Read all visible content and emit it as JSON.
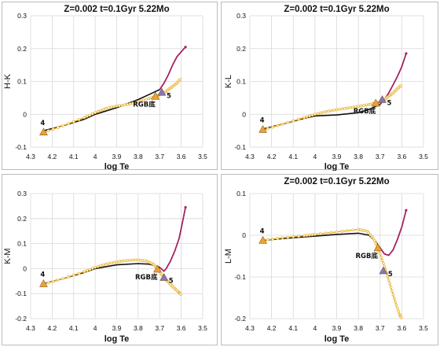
{
  "colors": {
    "black_line": "#111111",
    "magenta_line": "#b0206a",
    "gold_line": "#e3ad2a",
    "gold_marker": "#f0c050",
    "tri_orange": "#f0a030",
    "tri_purple": "#8a74b8",
    "grid": "#d8d8d8"
  },
  "chart_data": [
    {
      "type": "line",
      "title": "Z=0.002  t=0.1Gyr 5.22Mo",
      "xlabel": "log Te",
      "ylabel": "H-K",
      "xlim": [
        4.3,
        3.5
      ],
      "ylim": [
        -0.1,
        0.3
      ],
      "xticks": [
        "4.3",
        "4.2",
        "4.1",
        "4",
        "3.9",
        "3.8",
        "3.7",
        "3.6",
        "3.5"
      ],
      "yticks": [
        "-0.1",
        "0",
        "0.1",
        "0.2",
        "0.3"
      ],
      "grid": true,
      "series": [
        {
          "color": "black",
          "x": [
            4.24,
            4.15,
            4.05,
            4.0,
            3.9,
            3.8,
            3.75,
            3.7,
            3.68,
            3.66,
            3.64,
            3.62,
            3.6,
            3.58
          ],
          "y": [
            -0.05,
            -0.035,
            -0.015,
            0.0,
            0.02,
            0.045,
            0.06,
            0.075,
            0.095,
            0.12,
            0.15,
            0.175,
            0.19,
            0.205
          ]
        },
        {
          "color": "gold",
          "x": [
            4.24,
            4.15,
            4.05,
            4.0,
            3.95,
            3.9,
            3.85,
            3.8,
            3.75,
            3.72,
            3.7,
            3.68,
            3.66,
            3.64,
            3.62,
            3.6
          ],
          "y": [
            -0.055,
            -0.035,
            -0.01,
            0.005,
            0.018,
            0.025,
            0.03,
            0.038,
            0.048,
            0.054,
            0.06,
            0.065,
            0.075,
            0.085,
            0.095,
            0.11
          ]
        }
      ],
      "markers": [
        {
          "shape": "triangle",
          "color": "orange",
          "x": 4.24,
          "y": -0.054,
          "label": "4"
        },
        {
          "shape": "triangle",
          "color": "orange",
          "x": 3.72,
          "y": 0.055,
          "label": "RGB底"
        },
        {
          "shape": "triangle",
          "color": "purple",
          "x": 3.69,
          "y": 0.067,
          "label": "5"
        }
      ]
    },
    {
      "type": "line",
      "title": "Z=0.002  t=0.1Gyr 5.22Mo",
      "xlabel": "log Te",
      "ylabel": "K-L",
      "xlim": [
        4.3,
        3.5
      ],
      "ylim": [
        -0.1,
        0.3
      ],
      "xticks": [
        "4.3",
        "4.2",
        "4.1",
        "4",
        "3.9",
        "3.8",
        "3.7",
        "3.6",
        "3.5"
      ],
      "yticks": [
        "-0.1",
        "0",
        "0.1",
        "0.2",
        "0.3"
      ],
      "grid": true,
      "series": [
        {
          "color": "black",
          "x": [
            4.24,
            4.15,
            4.05,
            4.0,
            3.9,
            3.8,
            3.75,
            3.7,
            3.68,
            3.66,
            3.64,
            3.62,
            3.6,
            3.58
          ],
          "y": [
            -0.045,
            -0.03,
            -0.012,
            -0.005,
            -0.002,
            0.005,
            0.015,
            0.03,
            0.045,
            0.065,
            0.09,
            0.115,
            0.145,
            0.185
          ]
        },
        {
          "color": "gold",
          "x": [
            4.24,
            4.15,
            4.05,
            4.0,
            3.95,
            3.9,
            3.85,
            3.8,
            3.75,
            3.72,
            3.7,
            3.68,
            3.66,
            3.64,
            3.62,
            3.6
          ],
          "y": [
            -0.048,
            -0.03,
            -0.01,
            0.0,
            0.008,
            0.014,
            0.019,
            0.024,
            0.03,
            0.034,
            0.038,
            0.045,
            0.055,
            0.065,
            0.078,
            0.09
          ]
        }
      ],
      "markers": [
        {
          "shape": "triangle",
          "color": "orange",
          "x": 4.24,
          "y": -0.046,
          "label": "4"
        },
        {
          "shape": "triangle",
          "color": "orange",
          "x": 3.72,
          "y": 0.034,
          "label": "RGB底"
        },
        {
          "shape": "triangle",
          "color": "purple",
          "x": 3.69,
          "y": 0.045,
          "label": "5"
        }
      ]
    },
    {
      "type": "line",
      "title": "",
      "xlabel": "log Te",
      "ylabel": "K-M",
      "xlim": [
        4.3,
        3.5
      ],
      "ylim": [
        -0.2,
        0.3
      ],
      "xticks": [
        "4.3",
        "4.2",
        "4.1",
        "4",
        "3.9",
        "3.8",
        "3.7",
        "3.6",
        "3.5"
      ],
      "yticks": [
        "-0.2",
        "-0.1",
        "0",
        "0.1",
        "0.2",
        "0.3"
      ],
      "grid": true,
      "series": [
        {
          "color": "black",
          "x": [
            4.24,
            4.15,
            4.05,
            4.0,
            3.9,
            3.8,
            3.75,
            3.72,
            3.7,
            3.68,
            3.67,
            3.65,
            3.63,
            3.61,
            3.6,
            3.58
          ],
          "y": [
            -0.06,
            -0.04,
            -0.015,
            0.0,
            0.015,
            0.02,
            0.018,
            0.012,
            0.005,
            -0.01,
            0.0,
            0.03,
            0.07,
            0.12,
            0.16,
            0.245
          ]
        },
        {
          "color": "gold",
          "x": [
            4.24,
            4.15,
            4.05,
            4.0,
            3.95,
            3.9,
            3.85,
            3.8,
            3.76,
            3.73,
            3.71,
            3.69,
            3.67,
            3.65,
            3.63,
            3.61,
            3.6
          ],
          "y": [
            -0.062,
            -0.04,
            -0.012,
            0.005,
            0.018,
            0.027,
            0.033,
            0.035,
            0.03,
            0.018,
            0.0,
            -0.025,
            -0.045,
            -0.062,
            -0.08,
            -0.095,
            -0.105
          ]
        }
      ],
      "markers": [
        {
          "shape": "triangle",
          "color": "orange",
          "x": 4.24,
          "y": -0.06,
          "label": "4"
        },
        {
          "shape": "triangle",
          "color": "orange",
          "x": 3.71,
          "y": -0.002,
          "label": "RGB底"
        },
        {
          "shape": "triangle",
          "color": "purple",
          "x": 3.68,
          "y": -0.035,
          "label": "5"
        }
      ]
    },
    {
      "type": "line",
      "title": "Z=0.002  t=0.1Gyr 5.22Mo",
      "xlabel": "log Te",
      "ylabel": "L-M",
      "xlim": [
        4.3,
        3.5
      ],
      "ylim": [
        -0.2,
        0.1
      ],
      "xticks": [
        "4.3",
        "4.2",
        "4.1",
        "4",
        "3.9",
        "3.8",
        "3.7",
        "3.6",
        "3.5"
      ],
      "yticks": [
        "-0.2",
        "-0.1",
        "0",
        "0.1"
      ],
      "grid": true,
      "series": [
        {
          "color": "black",
          "x": [
            4.24,
            4.15,
            4.05,
            4.0,
            3.9,
            3.8,
            3.75,
            3.72,
            3.7,
            3.68,
            3.66,
            3.64,
            3.62,
            3.6,
            3.58
          ],
          "y": [
            -0.012,
            -0.008,
            -0.004,
            -0.002,
            0.002,
            0.005,
            0.0,
            -0.015,
            -0.03,
            -0.045,
            -0.048,
            -0.035,
            -0.01,
            0.02,
            0.06
          ]
        },
        {
          "color": "gold",
          "x": [
            4.24,
            4.15,
            4.05,
            4.0,
            3.9,
            3.8,
            3.76,
            3.73,
            3.71,
            3.69,
            3.67,
            3.65,
            3.63,
            3.61,
            3.6
          ],
          "y": [
            -0.012,
            -0.006,
            -0.001,
            0.002,
            0.008,
            0.014,
            0.01,
            -0.008,
            -0.03,
            -0.06,
            -0.09,
            -0.125,
            -0.16,
            -0.19,
            -0.2
          ]
        }
      ],
      "markers": [
        {
          "shape": "triangle",
          "color": "orange",
          "x": 4.24,
          "y": -0.012,
          "label": "4"
        },
        {
          "shape": "triangle",
          "color": "orange",
          "x": 3.71,
          "y": -0.03,
          "label": "RGB底"
        },
        {
          "shape": "triangle",
          "color": "purple",
          "x": 3.685,
          "y": -0.085,
          "label": "5"
        }
      ]
    }
  ]
}
